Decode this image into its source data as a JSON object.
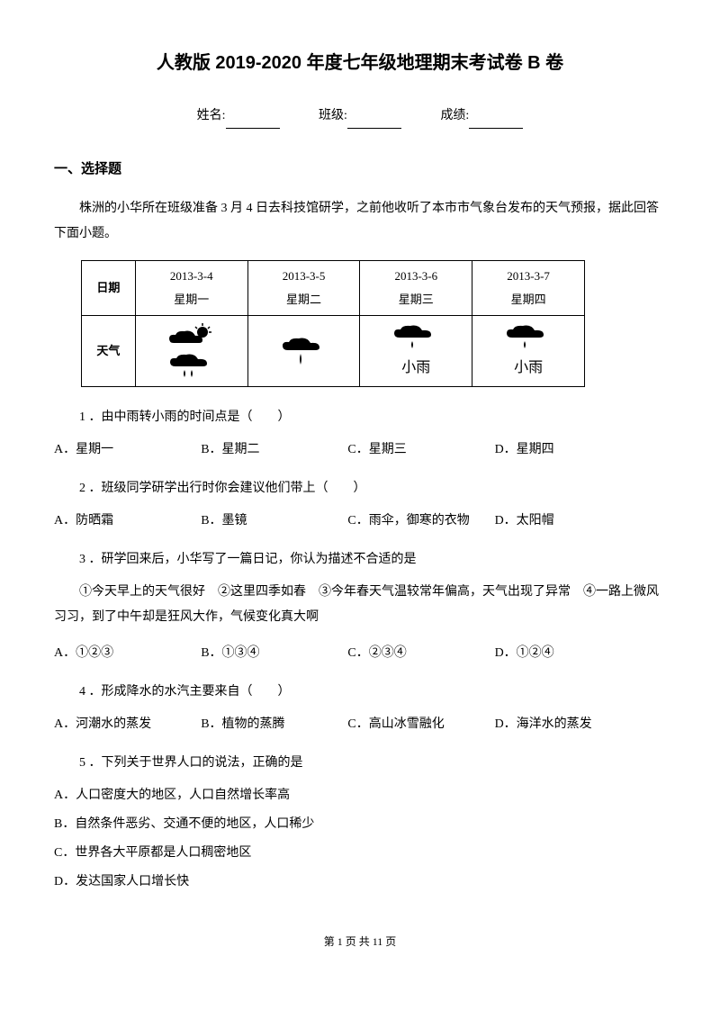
{
  "title": "人教版 2019-2020 年度七年级地理期末考试卷 B 卷",
  "info": {
    "name_label": "姓名:",
    "class_label": "班级:",
    "score_label": "成绩:"
  },
  "section1": {
    "heading": "一、选择题",
    "intro": "株洲的小华所在班级准备 3 月 4 日去科技馆研学，之前他收听了本市市气象台发布的天气预报，据此回答下面小题。"
  },
  "weather_table": {
    "row_labels": [
      "日期",
      "天气"
    ],
    "columns": [
      {
        "date": "2013-3-4",
        "day": "星期一",
        "rain_label": ""
      },
      {
        "date": "2013-3-5",
        "day": "星期二",
        "rain_label": ""
      },
      {
        "date": "2013-3-6",
        "day": "星期三",
        "rain_label": "小雨"
      },
      {
        "date": "2013-3-7",
        "day": "星期四",
        "rain_label": "小雨"
      }
    ]
  },
  "questions": [
    {
      "num": "1",
      "text": "．由中雨转小雨的时间点是（　　）",
      "options": [
        "A．星期一",
        "B．星期二",
        "C．星期三",
        "D．星期四"
      ],
      "layout": "inline"
    },
    {
      "num": "2",
      "text": "．班级同学研学出行时你会建议他们带上（　　）",
      "options": [
        "A．防晒霜",
        "B．墨镜",
        "C．雨伞，御寒的衣物",
        "D．太阳帽"
      ],
      "layout": "inline"
    },
    {
      "num": "3",
      "text": "．研学回来后，小华写了一篇日记，你认为描述不合适的是",
      "extra": "①今天早上的天气很好　②这里四季如春　③今年春天气温较常年偏高，天气出现了异常　④一路上微风习习，到了中午却是狂风大作，气候变化真大啊",
      "options": [
        "A．①②③",
        "B．①③④",
        "C．②③④",
        "D．①②④"
      ],
      "layout": "inline"
    },
    {
      "num": "4",
      "text": "．形成降水的水汽主要来自（　　）",
      "options": [
        "A．河潮水的蒸发",
        "B．植物的蒸腾",
        "C．高山冰雪融化",
        "D．海洋水的蒸发"
      ],
      "layout": "inline"
    },
    {
      "num": "5",
      "text": "．下列关于世界人口的说法，正确的是",
      "options": [
        "A．人口密度大的地区，人口自然增长率高",
        "B．自然条件恶劣、交通不便的地区，人口稀少",
        "C．世界各大平原都是人口稠密地区",
        "D．发达国家人口增长快"
      ],
      "layout": "block"
    }
  ],
  "footer": "第 1 页 共 11 页",
  "svg_colors": {
    "cloud": "#000000",
    "sun": "#000000",
    "rain": "#000000"
  }
}
